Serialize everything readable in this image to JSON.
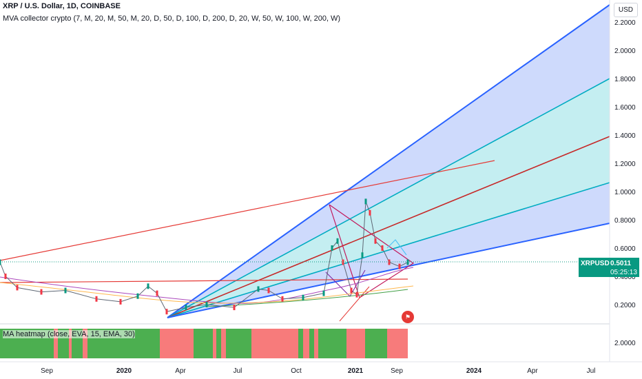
{
  "header": {
    "title": "XRP / U.S. Dollar, 1D, COINBASE",
    "indicator": "MVA collector crypto (7, M, 20, M, 50, M, 20, D, 50, D, 100, D, 200, D, 20, W, 50, W, 100, W, 200, W)"
  },
  "currency_button": "USD",
  "price_badge": {
    "symbol": "XRPUSD",
    "price": "0.5011",
    "countdown": "05:25:13"
  },
  "heatmap_panel": {
    "label": "MA heatmap (close, EVA, 15, EMA, 30)",
    "scale_label": "2.0000"
  },
  "colors": {
    "fan_outer": "#2962ff",
    "fan_fill": "#c5d3fb",
    "fan_inner_fill": "#c3f0f0",
    "cyan_line": "#00acc1",
    "red_line": "#c62828",
    "candle_up": "#089981",
    "candle_down": "#f23645",
    "heat_green": "#4caf50",
    "heat_red": "#f77b7b"
  },
  "chart_data": {
    "type": "line",
    "symbol": "XRPUSD",
    "y_ticks": [
      "2.2000",
      "2.0000",
      "1.8000",
      "1.6000",
      "1.4000",
      "1.2000",
      "1.0000",
      "0.8000",
      "0.6000",
      "0.4000",
      "0.2000"
    ],
    "x_ticks": [
      "Sep",
      "2020",
      "Apr",
      "Jul",
      "Oct",
      "2021",
      "Sep",
      "2024",
      "Apr",
      "Jul"
    ],
    "ylim": [
      0.1,
      2.28
    ],
    "current_price": 0.5011,
    "price_series": [
      {
        "x": 0,
        "y": 0.5
      },
      {
        "x": 8,
        "y": 0.4
      },
      {
        "x": 25,
        "y": 0.32
      },
      {
        "x": 60,
        "y": 0.29
      },
      {
        "x": 95,
        "y": 0.3
      },
      {
        "x": 140,
        "y": 0.24
      },
      {
        "x": 175,
        "y": 0.22
      },
      {
        "x": 200,
        "y": 0.26
      },
      {
        "x": 215,
        "y": 0.33
      },
      {
        "x": 228,
        "y": 0.28
      },
      {
        "x": 242,
        "y": 0.15
      },
      {
        "x": 270,
        "y": 0.18
      },
      {
        "x": 300,
        "y": 0.2
      },
      {
        "x": 340,
        "y": 0.18
      },
      {
        "x": 375,
        "y": 0.31
      },
      {
        "x": 390,
        "y": 0.3
      },
      {
        "x": 410,
        "y": 0.24
      },
      {
        "x": 440,
        "y": 0.25
      },
      {
        "x": 470,
        "y": 0.28
      },
      {
        "x": 482,
        "y": 0.6
      },
      {
        "x": 490,
        "y": 0.65
      },
      {
        "x": 498,
        "y": 0.5
      },
      {
        "x": 510,
        "y": 0.3
      },
      {
        "x": 518,
        "y": 0.27
      },
      {
        "x": 526,
        "y": 0.55
      },
      {
        "x": 531,
        "y": 0.93
      },
      {
        "x": 537,
        "y": 0.85
      },
      {
        "x": 545,
        "y": 0.65
      },
      {
        "x": 555,
        "y": 0.6
      },
      {
        "x": 565,
        "y": 0.5
      },
      {
        "x": 580,
        "y": 0.47
      },
      {
        "x": 592,
        "y": 0.5
      }
    ],
    "heatmap": [
      {
        "x0": 0,
        "x1": 78,
        "c": "green"
      },
      {
        "x0": 78,
        "x1": 84,
        "c": "red"
      },
      {
        "x0": 84,
        "x1": 100,
        "c": "green"
      },
      {
        "x0": 100,
        "x1": 104,
        "c": "red"
      },
      {
        "x0": 104,
        "x1": 120,
        "c": "green"
      },
      {
        "x0": 120,
        "x1": 127,
        "c": "red"
      },
      {
        "x0": 127,
        "x1": 232,
        "c": "green"
      },
      {
        "x0": 232,
        "x1": 281,
        "c": "red"
      },
      {
        "x0": 281,
        "x1": 309,
        "c": "green"
      },
      {
        "x0": 309,
        "x1": 314,
        "c": "red"
      },
      {
        "x0": 314,
        "x1": 321,
        "c": "green"
      },
      {
        "x0": 321,
        "x1": 328,
        "c": "red"
      },
      {
        "x0": 328,
        "x1": 365,
        "c": "green"
      },
      {
        "x0": 365,
        "x1": 433,
        "c": "red"
      },
      {
        "x0": 433,
        "x1": 440,
        "c": "green"
      },
      {
        "x0": 440,
        "x1": 449,
        "c": "red"
      },
      {
        "x0": 449,
        "x1": 456,
        "c": "green"
      },
      {
        "x0": 456,
        "x1": 462,
        "c": "red"
      },
      {
        "x0": 462,
        "x1": 503,
        "c": "green"
      },
      {
        "x0": 503,
        "x1": 530,
        "c": "red"
      },
      {
        "x0": 530,
        "x1": 562,
        "c": "green"
      },
      {
        "x0": 562,
        "x1": 592,
        "c": "red"
      }
    ]
  }
}
